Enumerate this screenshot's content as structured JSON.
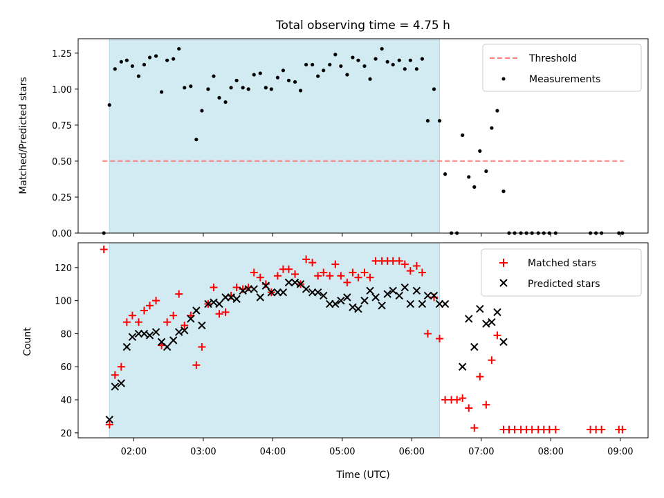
{
  "title": "Total observing time = 4.75 h",
  "colors": {
    "shade": "#add8e6",
    "threshold": "#ff7f7f",
    "matched": "#ff0000",
    "predicted": "#000000",
    "measurement": "#000000"
  },
  "chart_data": [
    {
      "type": "scatter",
      "panel": "top",
      "ylabel": "Matched/Predicted stars",
      "xlabel": "",
      "xlim": [
        1.2,
        9.4
      ],
      "ylim": [
        0,
        1.35
      ],
      "yticks": [
        0.0,
        0.25,
        0.5,
        0.75,
        1.0,
        1.25
      ],
      "ytick_labels": [
        "0.00",
        "0.25",
        "0.50",
        "0.75",
        "1.00",
        "1.25"
      ],
      "shaded_span": [
        1.65,
        6.4
      ],
      "threshold": {
        "name": "Threshold",
        "y": 0.5,
        "x_range": [
          1.55,
          9.05
        ]
      },
      "legend": {
        "placement": "top-right",
        "entries": [
          "Threshold",
          "Measurements"
        ]
      },
      "series": [
        {
          "name": "Measurements",
          "points": [
            [
              1.57,
              0.0
            ],
            [
              1.65,
              0.89
            ],
            [
              1.73,
              1.14
            ],
            [
              1.82,
              1.19
            ],
            [
              1.9,
              1.2
            ],
            [
              1.98,
              1.16
            ],
            [
              2.07,
              1.09
            ],
            [
              2.15,
              1.17
            ],
            [
              2.23,
              1.22
            ],
            [
              2.32,
              1.23
            ],
            [
              2.4,
              0.98
            ],
            [
              2.48,
              1.2
            ],
            [
              2.57,
              1.21
            ],
            [
              2.65,
              1.28
            ],
            [
              2.73,
              1.01
            ],
            [
              2.82,
              1.02
            ],
            [
              2.9,
              0.65
            ],
            [
              2.98,
              0.85
            ],
            [
              3.07,
              1.0
            ],
            [
              3.15,
              1.09
            ],
            [
              3.23,
              0.94
            ],
            [
              3.32,
              0.91
            ],
            [
              3.4,
              1.01
            ],
            [
              3.48,
              1.06
            ],
            [
              3.57,
              1.01
            ],
            [
              3.65,
              1.0
            ],
            [
              3.73,
              1.1
            ],
            [
              3.82,
              1.11
            ],
            [
              3.9,
              1.01
            ],
            [
              3.98,
              1.0
            ],
            [
              4.07,
              1.08
            ],
            [
              4.15,
              1.13
            ],
            [
              4.23,
              1.06
            ],
            [
              4.32,
              1.05
            ],
            [
              4.4,
              0.99
            ],
            [
              4.48,
              1.17
            ],
            [
              4.57,
              1.17
            ],
            [
              4.65,
              1.09
            ],
            [
              4.73,
              1.13
            ],
            [
              4.82,
              1.17
            ],
            [
              4.9,
              1.24
            ],
            [
              4.98,
              1.16
            ],
            [
              5.07,
              1.1
            ],
            [
              5.15,
              1.22
            ],
            [
              5.23,
              1.2
            ],
            [
              5.32,
              1.16
            ],
            [
              5.4,
              1.07
            ],
            [
              5.48,
              1.21
            ],
            [
              5.57,
              1.28
            ],
            [
              5.65,
              1.19
            ],
            [
              5.73,
              1.17
            ],
            [
              5.82,
              1.2
            ],
            [
              5.9,
              1.14
            ],
            [
              5.98,
              1.2
            ],
            [
              6.07,
              1.14
            ],
            [
              6.15,
              1.21
            ],
            [
              6.23,
              0.78
            ],
            [
              6.32,
              1.0
            ],
            [
              6.4,
              0.78
            ],
            [
              6.48,
              0.41
            ],
            [
              6.57,
              0.0
            ],
            [
              6.65,
              0.0
            ],
            [
              6.73,
              0.68
            ],
            [
              6.82,
              0.39
            ],
            [
              6.9,
              0.32
            ],
            [
              6.98,
              0.57
            ],
            [
              7.07,
              0.43
            ],
            [
              7.15,
              0.73
            ],
            [
              7.23,
              0.85
            ],
            [
              7.32,
              0.29
            ],
            [
              7.4,
              0.0
            ],
            [
              7.48,
              0.0
            ],
            [
              7.57,
              0.0
            ],
            [
              7.65,
              0.0
            ],
            [
              7.73,
              0.0
            ],
            [
              7.82,
              0.0
            ],
            [
              7.9,
              0.0
            ],
            [
              7.98,
              0.0
            ],
            [
              8.07,
              0.0
            ],
            [
              8.57,
              0.0
            ],
            [
              8.65,
              0.0
            ],
            [
              8.73,
              0.0
            ],
            [
              8.98,
              0.0
            ],
            [
              9.03,
              0.0
            ]
          ]
        }
      ]
    },
    {
      "type": "scatter",
      "panel": "bottom",
      "ylabel": "Count",
      "xlabel": "Time (UTC)",
      "xlim": [
        1.2,
        9.4
      ],
      "ylim": [
        17,
        135
      ],
      "yticks": [
        20,
        40,
        60,
        80,
        100,
        120
      ],
      "ytick_labels": [
        "20",
        "40",
        "60",
        "80",
        "100",
        "120"
      ],
      "xticks": [
        2,
        3,
        4,
        5,
        6,
        7,
        8,
        9
      ],
      "xtick_labels": [
        "02:00",
        "03:00",
        "04:00",
        "05:00",
        "06:00",
        "07:00",
        "08:00",
        "09:00"
      ],
      "shaded_span": [
        1.65,
        6.4
      ],
      "legend": {
        "placement": "top-right",
        "entries": [
          "Matched stars",
          "Predicted stars"
        ]
      },
      "series": [
        {
          "name": "Matched stars",
          "marker": "plus",
          "points": [
            [
              1.57,
              131
            ],
            [
              1.65,
              25
            ],
            [
              1.73,
              55
            ],
            [
              1.82,
              60
            ],
            [
              1.9,
              87
            ],
            [
              1.98,
              91
            ],
            [
              2.07,
              87
            ],
            [
              2.15,
              94
            ],
            [
              2.23,
              97
            ],
            [
              2.32,
              100
            ],
            [
              2.4,
              73
            ],
            [
              2.48,
              87
            ],
            [
              2.57,
              91
            ],
            [
              2.65,
              104
            ],
            [
              2.73,
              85
            ],
            [
              2.82,
              91
            ],
            [
              2.9,
              61
            ],
            [
              2.98,
              72
            ],
            [
              3.07,
              98
            ],
            [
              3.15,
              108
            ],
            [
              3.23,
              92
            ],
            [
              3.32,
              93
            ],
            [
              3.4,
              103
            ],
            [
              3.48,
              108
            ],
            [
              3.57,
              107
            ],
            [
              3.65,
              108
            ],
            [
              3.73,
              117
            ],
            [
              3.82,
              114
            ],
            [
              3.9,
              110
            ],
            [
              3.98,
              105
            ],
            [
              4.07,
              115
            ],
            [
              4.15,
              119
            ],
            [
              4.23,
              119
            ],
            [
              4.32,
              116
            ],
            [
              4.4,
              110
            ],
            [
              4.48,
              125
            ],
            [
              4.57,
              123
            ],
            [
              4.65,
              115
            ],
            [
              4.73,
              117
            ],
            [
              4.82,
              115
            ],
            [
              4.9,
              122
            ],
            [
              4.98,
              115
            ],
            [
              5.07,
              111
            ],
            [
              5.15,
              117
            ],
            [
              5.23,
              114
            ],
            [
              5.32,
              117
            ],
            [
              5.4,
              114
            ],
            [
              5.48,
              124
            ],
            [
              5.57,
              124
            ],
            [
              5.65,
              124
            ],
            [
              5.73,
              124
            ],
            [
              5.82,
              124
            ],
            [
              5.9,
              122
            ],
            [
              5.98,
              118
            ],
            [
              6.07,
              121
            ],
            [
              6.15,
              117
            ],
            [
              6.23,
              80
            ],
            [
              6.32,
              102
            ],
            [
              6.4,
              77
            ],
            [
              6.48,
              40
            ],
            [
              6.57,
              40
            ],
            [
              6.65,
              40
            ],
            [
              6.73,
              41
            ],
            [
              6.82,
              35
            ],
            [
              6.9,
              23
            ],
            [
              6.98,
              54
            ],
            [
              7.07,
              37
            ],
            [
              7.15,
              64
            ],
            [
              7.23,
              79
            ],
            [
              7.32,
              22
            ],
            [
              7.4,
              22
            ],
            [
              7.48,
              22
            ],
            [
              7.57,
              22
            ],
            [
              7.65,
              22
            ],
            [
              7.73,
              22
            ],
            [
              7.82,
              22
            ],
            [
              7.9,
              22
            ],
            [
              7.98,
              22
            ],
            [
              8.07,
              22
            ],
            [
              8.57,
              22
            ],
            [
              8.65,
              22
            ],
            [
              8.73,
              22
            ],
            [
              8.98,
              22
            ],
            [
              9.03,
              22
            ]
          ]
        },
        {
          "name": "Predicted stars",
          "marker": "x",
          "points": [
            [
              1.65,
              28
            ],
            [
              1.73,
              48
            ],
            [
              1.82,
              50
            ],
            [
              1.9,
              72
            ],
            [
              1.98,
              78
            ],
            [
              2.07,
              80
            ],
            [
              2.15,
              80
            ],
            [
              2.23,
              79
            ],
            [
              2.32,
              81
            ],
            [
              2.4,
              75
            ],
            [
              2.48,
              72
            ],
            [
              2.57,
              76
            ],
            [
              2.65,
              81
            ],
            [
              2.73,
              82
            ],
            [
              2.82,
              89
            ],
            [
              2.9,
              94
            ],
            [
              2.98,
              85
            ],
            [
              3.07,
              98
            ],
            [
              3.15,
              99
            ],
            [
              3.23,
              98
            ],
            [
              3.32,
              102
            ],
            [
              3.4,
              102
            ],
            [
              3.48,
              101
            ],
            [
              3.57,
              106
            ],
            [
              3.65,
              107
            ],
            [
              3.73,
              107
            ],
            [
              3.82,
              102
            ],
            [
              3.9,
              109
            ],
            [
              3.98,
              105
            ],
            [
              4.07,
              105
            ],
            [
              4.15,
              105
            ],
            [
              4.23,
              111
            ],
            [
              4.32,
              111
            ],
            [
              4.4,
              110
            ],
            [
              4.48,
              107
            ],
            [
              4.57,
              105
            ],
            [
              4.65,
              105
            ],
            [
              4.73,
              103
            ],
            [
              4.82,
              98
            ],
            [
              4.9,
              98
            ],
            [
              4.98,
              100
            ],
            [
              5.07,
              102
            ],
            [
              5.15,
              96
            ],
            [
              5.23,
              95
            ],
            [
              5.32,
              100
            ],
            [
              5.4,
              106
            ],
            [
              5.48,
              102
            ],
            [
              5.57,
              97
            ],
            [
              5.65,
              104
            ],
            [
              5.73,
              106
            ],
            [
              5.82,
              103
            ],
            [
              5.9,
              108
            ],
            [
              5.98,
              98
            ],
            [
              6.07,
              106
            ],
            [
              6.15,
              98
            ],
            [
              6.23,
              103
            ],
            [
              6.32,
              103
            ],
            [
              6.4,
              98
            ],
            [
              6.48,
              98
            ],
            [
              6.73,
              60
            ],
            [
              6.82,
              89
            ],
            [
              6.9,
              72
            ],
            [
              6.98,
              95
            ],
            [
              7.07,
              86
            ],
            [
              7.15,
              87
            ],
            [
              7.23,
              93
            ],
            [
              7.32,
              75
            ]
          ]
        }
      ]
    }
  ]
}
